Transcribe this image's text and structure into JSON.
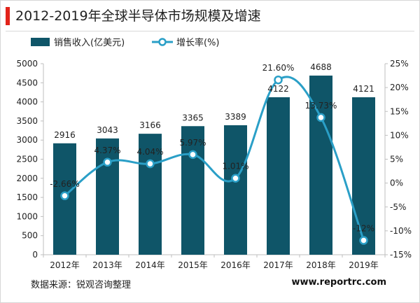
{
  "header": {
    "title": "2012-2019年全球半导体市场规模及增速"
  },
  "footer": {
    "source": "数据来源：锐观咨询整理",
    "website": "www.reportrc.com"
  },
  "colors": {
    "bar": "#0f5568",
    "line": "#2a9fc7",
    "accent": "#e2231a"
  },
  "chart_data": {
    "type": "bar",
    "title": "",
    "xlabel": "",
    "ylabel": "",
    "categories": [
      "2012年",
      "2013年",
      "2014年",
      "2015年",
      "2016年",
      "2017年",
      "2018年",
      "2019年"
    ],
    "series": [
      {
        "name": "销售收入(亿美元)",
        "type": "bar",
        "axis": "left",
        "values": [
          2916,
          3043,
          3166,
          3365,
          3389,
          4122,
          4688,
          4121
        ],
        "labels": [
          "2916",
          "3043",
          "3166",
          "3365",
          "3389",
          "4122",
          "4688",
          "4121"
        ]
      },
      {
        "name": "增长率(%)",
        "type": "line",
        "axis": "right",
        "values": [
          -2.66,
          4.37,
          4.04,
          5.97,
          1.01,
          21.6,
          13.73,
          -12
        ],
        "labels": [
          "-2.66%",
          "4.37%",
          "4.04%",
          "5.97%",
          "1.01%",
          "21.60%",
          "13.73%",
          "-12%"
        ]
      }
    ],
    "y_left": {
      "min": 0,
      "max": 5000,
      "ticks": [
        "0",
        "500",
        "1000",
        "1500",
        "2000",
        "2500",
        "3000",
        "3500",
        "4000",
        "4500",
        "5000"
      ]
    },
    "y_right": {
      "min": -15,
      "max": 25,
      "ticks": [
        "-15%",
        "-10%",
        "-5%",
        "0%",
        "5%",
        "10%",
        "15%",
        "20%",
        "25%"
      ]
    },
    "grid": false,
    "legend": "top-left"
  }
}
